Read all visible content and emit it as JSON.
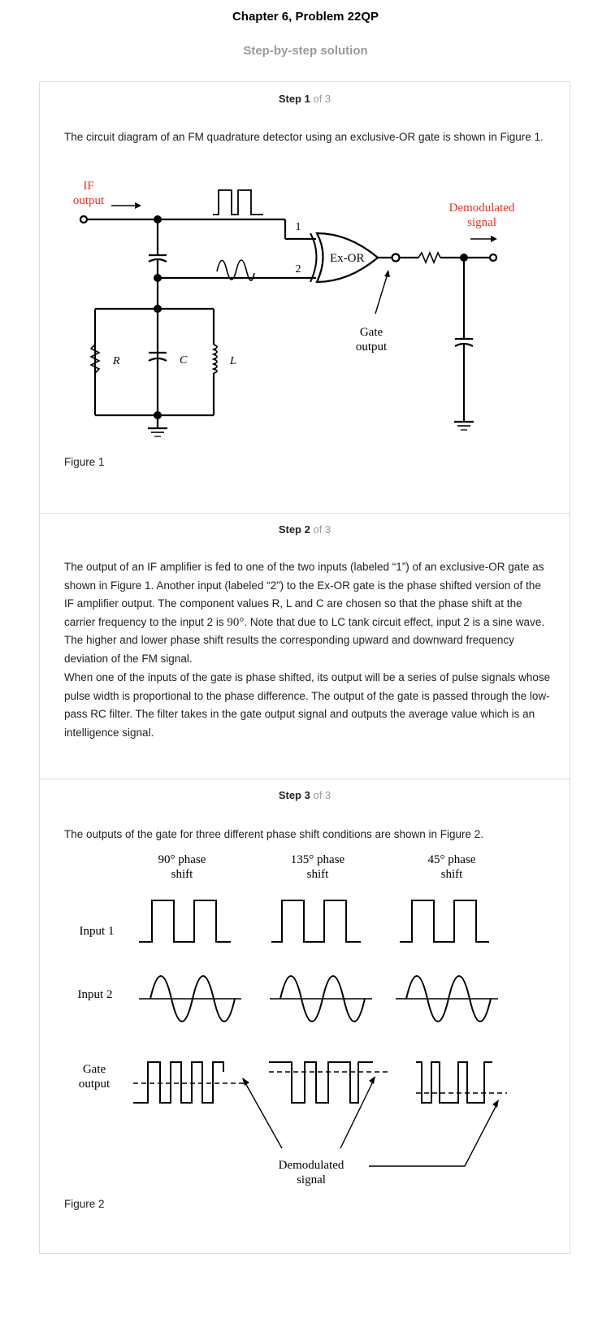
{
  "header": {
    "title": "Chapter 6, Problem 22QP",
    "subtitle": "Step-by-step solution"
  },
  "steps": [
    {
      "label": "Step 1",
      "of": "of 3",
      "paragraphs": [
        "The circuit diagram of an FM quadrature detector using an exclusive-OR gate is shown in Figure 1."
      ],
      "caption": "Figure 1"
    },
    {
      "label": "Step 2",
      "of": "of 3",
      "paragraphs": [
        "The output of an IF amplifier is fed to one of the two inputs (labeled “1”) of an exclusive-OR gate as shown in Figure 1. Another input (labeled “2”) to the Ex-OR gate is the phase shifted version of the IF amplifier output. The component values R, L and C are chosen so that the phase shift at the carrier frequency to the input 2 is",
        "90°",
        ". Note that due to LC tank circuit effect, input 2 is a sine wave. The higher and lower phase shift results the corresponding upward and downward frequency deviation of the FM signal.",
        "When one of the inputs of the gate is phase shifted, its output will be a series of pulse signals whose pulse width is proportional to the phase difference. The output of the gate is passed through the low-pass RC filter. The filter takes in the gate output signal and outputs the average value which is an intelligence signal."
      ]
    },
    {
      "label": "Step 3",
      "of": "of 3",
      "paragraphs": [
        "The outputs of the gate for three different phase shift conditions are shown in Figure 2."
      ],
      "caption": "Figure 2"
    }
  ],
  "figure1": {
    "if_output": [
      "IF",
      "output"
    ],
    "demodulated": [
      "Demodulated",
      "signal"
    ],
    "gate_output": [
      "Gate",
      "output"
    ],
    "gate_name": "Ex-OR",
    "input1": "1",
    "input2": "2",
    "r": "R",
    "c": "C",
    "l": "L",
    "colors": {
      "red_label": "#e8321e",
      "line": "#000000"
    }
  },
  "figure2": {
    "cols": [
      [
        "90° phase",
        "shift"
      ],
      [
        "135° phase",
        "shift"
      ],
      [
        "45° phase",
        "shift"
      ]
    ],
    "rows": [
      "Input 1",
      "Input 2",
      [
        "Gate",
        "output"
      ]
    ],
    "demodulated": [
      "Demodulated",
      "signal"
    ]
  }
}
